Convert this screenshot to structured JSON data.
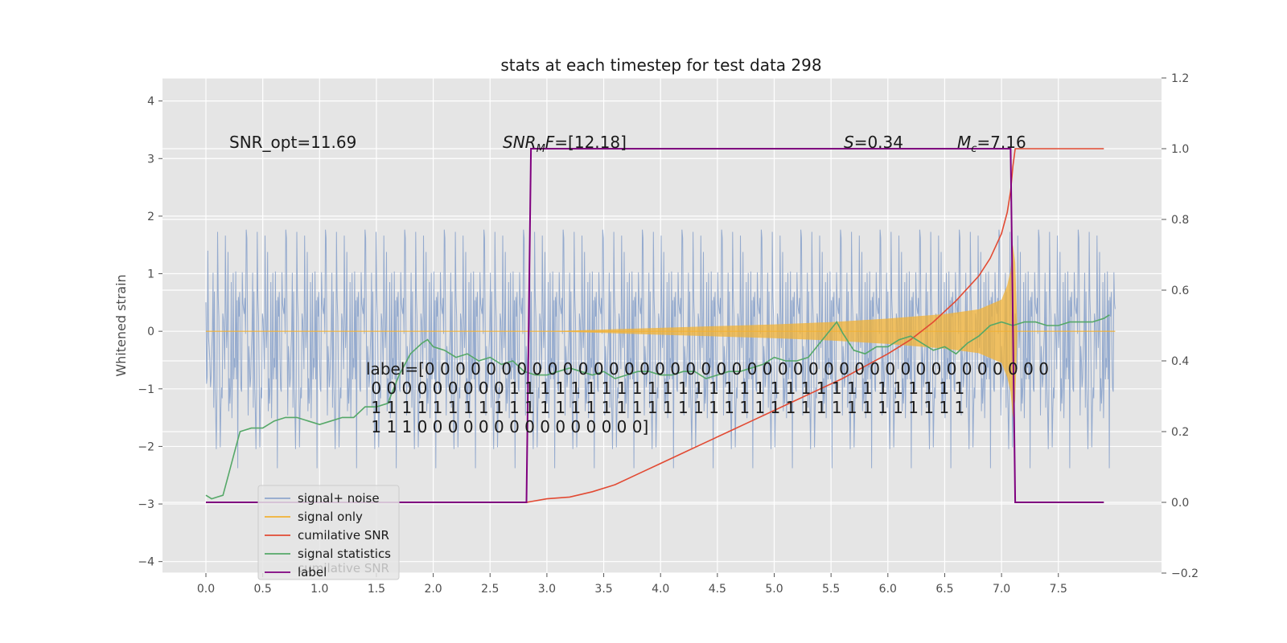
{
  "chart_data": {
    "type": "line",
    "title": "stats at each timestep for test data 298",
    "ylabel": "Whitened strain",
    "xlabel": "",
    "xlim": [
      -0.4,
      8.4
    ],
    "ylim": [
      -4.2,
      4.4
    ],
    "y2lim": [
      -0.2,
      1.2
    ],
    "x_ticks": [
      "0.0",
      "0.5",
      "1.0",
      "1.5",
      "2.0",
      "2.5",
      "3.0",
      "3.5",
      "4.0",
      "4.5",
      "5.0",
      "5.5",
      "6.0",
      "6.5",
      "7.0",
      "7.5"
    ],
    "y_ticks": [
      "−4",
      "−3",
      "−2",
      "−1",
      "0",
      "1",
      "2",
      "3",
      "4"
    ],
    "y2_ticks": [
      "−0.2",
      "0.0",
      "0.2",
      "0.4",
      "0.6",
      "0.8",
      "1.0",
      "1.2"
    ],
    "grid": true,
    "legend_placement": "lower-left",
    "annotations": {
      "snr_opt": "SNR_opt=11.69",
      "snr_mf": "SNR_MF=[12.18]",
      "s": "S=0.34",
      "mc": "M_c=7.16",
      "label_lines": [
        "label=[0 0 0 0 0 0 0 0 0 0 0 0 0 0 0 0 0 0 0 0 0 0 0 0 0 0 0 0 0 0 0 0 0 0 0 0 0 0 0 0 0",
        " 0 0 0 0 0 0 0 0 0 1 1 1 1 1 1 1 1 1 1 1 1 1 1 1 1 1 1 1 1 1 1 1 1 1 1 1 1 1 1",
        " 1 1 1 1 1 1 1 1 1 1 1 1 1 1 1 1 1 1 1 1 1 1 1 1 1 1 1 1 1 1 1 1 1 1 1 1 1 1 1",
        " 1 1 1 0 0 0 0 0 0 0 0 0 0 0 0 0 0 0]"
      ]
    },
    "series": [
      {
        "name": "signal+ noise",
        "color": "#8fa6cc",
        "noise_amp": 2.6,
        "x_range": [
          0.0,
          8.0
        ]
      },
      {
        "name": "signal only",
        "color": "#f2b134",
        "envelope": {
          "x": [
            0,
            2,
            3,
            3.5,
            4,
            4.5,
            5,
            5.5,
            6,
            6.5,
            6.8,
            7,
            7.05,
            7.08,
            7.1,
            7.12,
            7.14,
            8
          ],
          "amp": [
            0,
            0,
            0,
            0.03,
            0.06,
            0.09,
            0.12,
            0.16,
            0.22,
            0.3,
            0.38,
            0.55,
            0.8,
            1.05,
            1.5,
            1.2,
            0,
            0
          ]
        }
      },
      {
        "name": "cumilative SNR",
        "color": "#e24a33",
        "x": [
          2.82,
          3.0,
          3.2,
          3.4,
          3.6,
          3.8,
          4.0,
          4.2,
          4.4,
          4.6,
          4.8,
          5.0,
          5.2,
          5.4,
          5.6,
          5.8,
          6.0,
          6.2,
          6.4,
          6.6,
          6.8,
          6.9,
          7.0,
          7.05,
          7.08,
          7.1,
          7.12,
          7.14,
          7.9
        ],
        "y": [
          0.0,
          0.01,
          0.015,
          0.03,
          0.05,
          0.08,
          0.11,
          0.14,
          0.17,
          0.2,
          0.23,
          0.26,
          0.29,
          0.32,
          0.35,
          0.385,
          0.42,
          0.46,
          0.51,
          0.57,
          0.64,
          0.69,
          0.76,
          0.82,
          0.88,
          0.95,
          1.0,
          1.0,
          1.0
        ]
      },
      {
        "name": "signal statistics",
        "color": "#55a868",
        "x": [
          0.0,
          0.05,
          0.1,
          0.15,
          0.2,
          0.25,
          0.3,
          0.4,
          0.5,
          0.6,
          0.7,
          0.8,
          0.9,
          1.0,
          1.1,
          1.2,
          1.3,
          1.4,
          1.5,
          1.6,
          1.7,
          1.8,
          1.9,
          1.95,
          2.0,
          2.1,
          2.2,
          2.3,
          2.4,
          2.5,
          2.6,
          2.7,
          2.8,
          2.9,
          3.0,
          3.1,
          3.2,
          3.3,
          3.4,
          3.5,
          3.6,
          3.7,
          3.8,
          3.9,
          4.0,
          4.1,
          4.2,
          4.3,
          4.4,
          4.5,
          4.6,
          4.7,
          4.8,
          4.9,
          5.0,
          5.1,
          5.2,
          5.3,
          5.4,
          5.5,
          5.55,
          5.6,
          5.7,
          5.8,
          5.9,
          6.0,
          6.1,
          6.2,
          6.3,
          6.4,
          6.5,
          6.6,
          6.7,
          6.8,
          6.9,
          7.0,
          7.1,
          7.2,
          7.3,
          7.4,
          7.5,
          7.6,
          7.7,
          7.8,
          7.9,
          7.95
        ],
        "y": [
          0.02,
          0.01,
          0.015,
          0.02,
          0.08,
          0.14,
          0.2,
          0.21,
          0.21,
          0.23,
          0.24,
          0.24,
          0.23,
          0.22,
          0.23,
          0.24,
          0.24,
          0.27,
          0.27,
          0.28,
          0.36,
          0.42,
          0.45,
          0.46,
          0.44,
          0.43,
          0.41,
          0.42,
          0.4,
          0.41,
          0.39,
          0.4,
          0.37,
          0.36,
          0.36,
          0.37,
          0.38,
          0.37,
          0.36,
          0.37,
          0.35,
          0.36,
          0.37,
          0.37,
          0.36,
          0.36,
          0.37,
          0.37,
          0.35,
          0.36,
          0.37,
          0.37,
          0.38,
          0.39,
          0.41,
          0.4,
          0.4,
          0.41,
          0.45,
          0.49,
          0.51,
          0.48,
          0.43,
          0.42,
          0.44,
          0.44,
          0.46,
          0.47,
          0.45,
          0.43,
          0.44,
          0.42,
          0.45,
          0.47,
          0.5,
          0.51,
          0.5,
          0.51,
          0.51,
          0.5,
          0.5,
          0.51,
          0.51,
          0.51,
          0.52,
          0.53
        ]
      },
      {
        "name": "label",
        "color": "#7f007f",
        "x": [
          0.0,
          2.82,
          2.86,
          3.0,
          4.0,
          5.0,
          6.0,
          7.08,
          7.12,
          7.9
        ],
        "y": [
          0.0,
          0.0,
          1.0,
          1.0,
          1.0,
          1.0,
          1.0,
          1.0,
          0.0,
          0.0
        ]
      }
    ],
    "legend_ghost_text": "cumilative SNR"
  },
  "legend": {
    "items": [
      {
        "label": "signal+ noise",
        "color": "#8fa6cc"
      },
      {
        "label": "signal only",
        "color": "#f2b134"
      },
      {
        "label": "cumilative SNR",
        "color": "#e24a33"
      },
      {
        "label": "signal statistics",
        "color": "#55a868"
      },
      {
        "label": "label",
        "color": "#7f007f"
      }
    ]
  },
  "colors": {
    "plot_bg": "#e5e5e5",
    "grid": "#ffffff"
  }
}
